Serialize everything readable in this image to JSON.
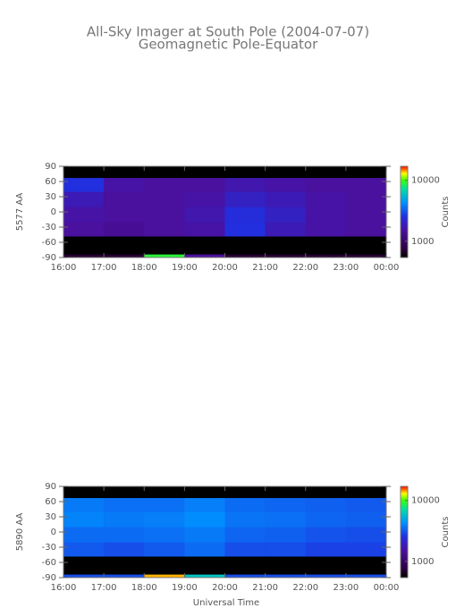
{
  "chart_data": [
    {
      "type": "heatmap",
      "title": "All-Sky Imager at South Pole (2004-07-07)",
      "subtitle": "Geomagnetic Pole-Equator",
      "ylabel": "5577 AA",
      "xlim": [
        16,
        24
      ],
      "xticks": [
        {
          "value": 16,
          "label": "16:00"
        },
        {
          "value": 17,
          "label": "17:00"
        },
        {
          "value": 18,
          "label": "18:00"
        },
        {
          "value": 19,
          "label": "19:00"
        },
        {
          "value": 20,
          "label": "20:00"
        },
        {
          "value": 21,
          "label": "21:00"
        },
        {
          "value": 22,
          "label": "22:00"
        },
        {
          "value": 23,
          "label": "23:00"
        },
        {
          "value": 24,
          "label": "00:00"
        }
      ],
      "ylim": [
        -90,
        90
      ],
      "yticks": [
        90,
        60,
        30,
        0,
        -30,
        -60,
        -90
      ],
      "x_edges": [
        16,
        17,
        18,
        19,
        20,
        21,
        22,
        23,
        24
      ],
      "y_edges": [
        -90,
        -84,
        -48,
        -20,
        10,
        40,
        67,
        90
      ],
      "z": [
        [
          700,
          700,
          9000,
          1500,
          700,
          700,
          700,
          700
        ],
        [
          null,
          null,
          null,
          null,
          null,
          null,
          null,
          null
        ],
        [
          1500,
          1400,
          1500,
          1600,
          2500,
          1800,
          1600,
          1500
        ],
        [
          1600,
          1500,
          1500,
          1700,
          2400,
          2000,
          1600,
          1500
        ],
        [
          1800,
          1500,
          1500,
          1600,
          2000,
          1800,
          1600,
          1500
        ],
        [
          2500,
          1600,
          1500,
          1500,
          1700,
          1600,
          1500,
          1500
        ],
        [
          null,
          null,
          null,
          null,
          null,
          null,
          null,
          null
        ]
      ],
      "zscale": "log",
      "zlim": [
        540,
        17000
      ],
      "zticks": [
        1000,
        10000
      ],
      "colorbar_label": "Counts"
    },
    {
      "type": "heatmap",
      "ylabel": "5890 AA",
      "xlabel": "Universal Time",
      "xlim": [
        16,
        24
      ],
      "xticks": [
        {
          "value": 16,
          "label": "16:00"
        },
        {
          "value": 17,
          "label": "17:00"
        },
        {
          "value": 18,
          "label": "18:00"
        },
        {
          "value": 19,
          "label": "19:00"
        },
        {
          "value": 20,
          "label": "20:00"
        },
        {
          "value": 21,
          "label": "21:00"
        },
        {
          "value": 22,
          "label": "22:00"
        },
        {
          "value": 23,
          "label": "23:00"
        },
        {
          "value": 24,
          "label": "00:00"
        }
      ],
      "ylim": [
        -90,
        90
      ],
      "yticks": [
        90,
        60,
        30,
        0,
        -30,
        -60,
        -90
      ],
      "x_edges": [
        16,
        17,
        18,
        19,
        20,
        21,
        22,
        23,
        24
      ],
      "y_edges": [
        -90,
        -84,
        -48,
        -20,
        10,
        40,
        67,
        90
      ],
      "z": [
        [
          3000,
          3000,
          14000,
          6000,
          3000,
          3000,
          3000,
          3000
        ],
        [
          null,
          null,
          null,
          null,
          null,
          null,
          null,
          null
        ],
        [
          3200,
          3000,
          3200,
          3500,
          3000,
          3000,
          2800,
          2800
        ],
        [
          3500,
          3500,
          3600,
          3800,
          3400,
          3300,
          3100,
          3000
        ],
        [
          4000,
          3800,
          3900,
          4200,
          3700,
          3600,
          3400,
          3300
        ],
        [
          3800,
          3600,
          3600,
          3900,
          3500,
          3400,
          3300,
          3200
        ],
        [
          null,
          null,
          null,
          null,
          null,
          null,
          null,
          null
        ]
      ],
      "zscale": "log",
      "zlim": [
        540,
        17000
      ],
      "zticks": [
        1000,
        10000
      ],
      "colorbar_label": "Counts"
    }
  ]
}
